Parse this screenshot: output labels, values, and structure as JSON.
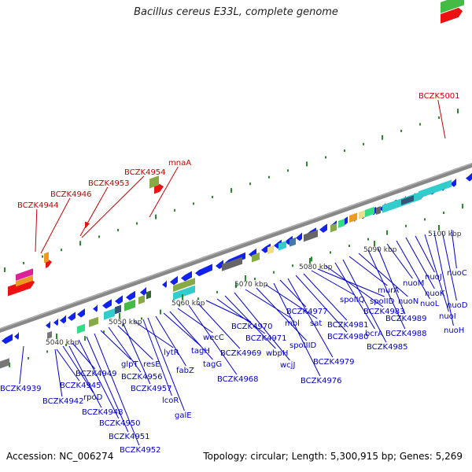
{
  "title": "Bacillus cereus E33L, complete genome",
  "footer": {
    "accession": "Accession: NC_006274",
    "topology": "Topology: circular; Length: 5,300,915 bp; Genes: 5,269"
  },
  "colors": {
    "forward_arrow": "#ee1111",
    "reverse_arrow": "#1122ee",
    "label_blue": "#0000cc",
    "label_red": "#cc0000",
    "backbone": "#888888",
    "tick": "#2a8a2a"
  },
  "scale_labels": [
    "5040 kbp",
    "5050 kbp",
    "5060 kbp",
    "5070 kbp",
    "5080 kbp",
    "5090 kbp",
    "5100 kbp"
  ],
  "red_labels": [
    "BCZK4944",
    "BCZK4946",
    "BCZK4953",
    "BCZK4954",
    "mnaA",
    "BCZK5001"
  ],
  "blue_labels": [
    "BCZK4939",
    "BCZK4942",
    "BCZK4945",
    "rpoD",
    "BCZK4948",
    "BCZK4949",
    "BCZK4950",
    "BCZK4951",
    "BCZK4952",
    "glpT",
    "BCZK4956",
    "resE",
    "BCZK4957",
    "lytR",
    "lcoR",
    "galE",
    "fabZ",
    "tagH",
    "tagG",
    "wecC",
    "BCZK4968",
    "BCZK4969",
    "BCZK4970",
    "BCZK4971",
    "wbpH",
    "wcjJ",
    "mbl",
    "spoIIID",
    "sat",
    "BCZK4976",
    "BCZK4977",
    "BCZK4979",
    "BCZK4980",
    "BCZK4981",
    "spoIIQ",
    "spoIID",
    "BCZK4983",
    "bcrA",
    "BCZK4985",
    "murA",
    "nuoN",
    "BCZK4988",
    "BCZK4989",
    "nuoM",
    "nuoL",
    "nuoK",
    "nuoJ",
    "nuoI",
    "nuoH",
    "nuoD",
    "nuoC"
  ]
}
